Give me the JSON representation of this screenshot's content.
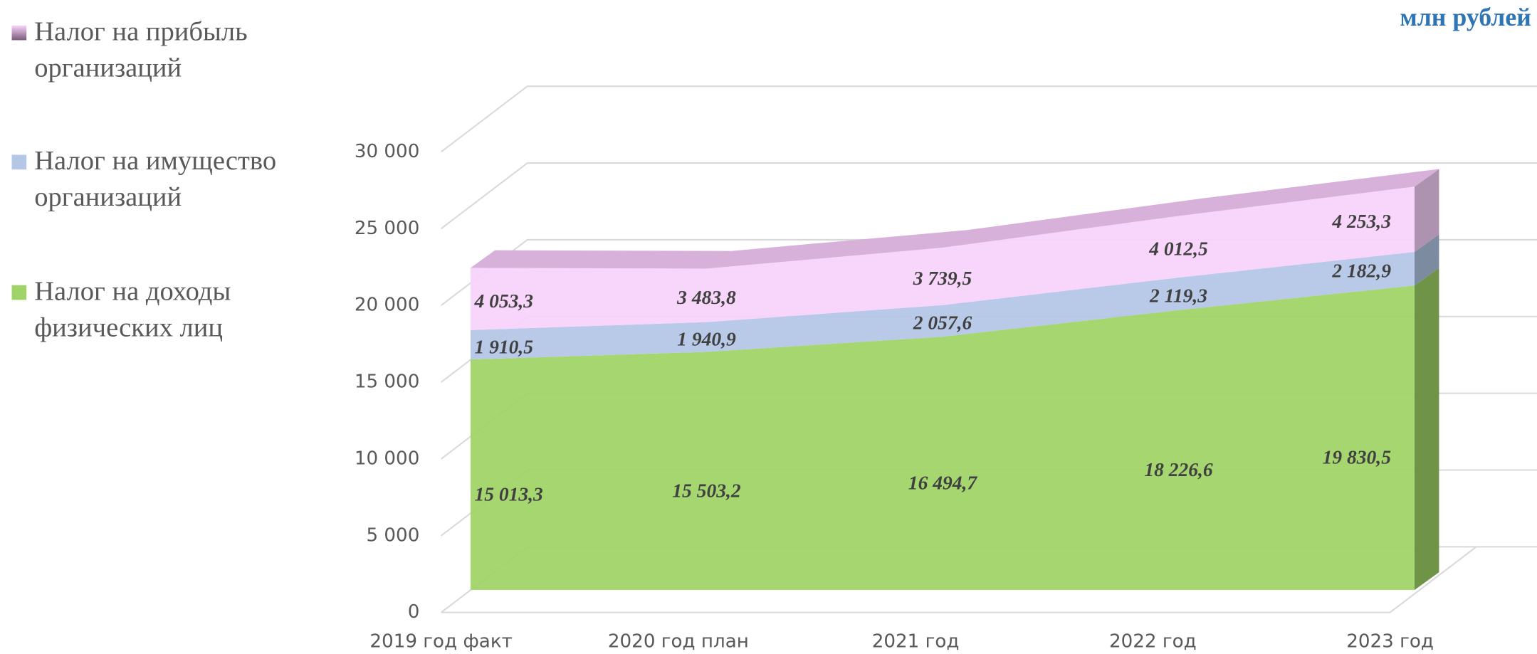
{
  "chart_data": {
    "type": "area",
    "stacked": true,
    "unit_label": "млн рублей",
    "categories": [
      "2019 год факт",
      "2020 год план",
      "2021 год",
      "2022 год",
      "2023 год"
    ],
    "series": [
      {
        "name": "Налог на доходы физических лиц",
        "color": "#a0d468",
        "values": [
          15013.3,
          15503.2,
          16494.7,
          18226.6,
          19830.5
        ],
        "value_labels": [
          "15 013,3",
          "15 503,2",
          "16 494,7",
          "18 226,6",
          "19 830,5"
        ]
      },
      {
        "name": "Налог на имущество организаций",
        "color": "#b4c7e7",
        "values": [
          1910.5,
          1940.9,
          2057.6,
          2119.3,
          2182.9
        ],
        "value_labels": [
          "1 910,5",
          "1 940,9",
          "2 057,6",
          "2 119,3",
          "2 182,9"
        ]
      },
      {
        "name": "Налог на прибыль организаций",
        "color": "#f8d3fb",
        "values": [
          4053.3,
          3483.8,
          3739.5,
          4012.5,
          4253.3
        ],
        "value_labels": [
          "4 053,3",
          "3 483,8",
          "3 739,5",
          "4 012,5",
          "4 253,3"
        ]
      }
    ],
    "ylim": [
      0,
      30000
    ],
    "yticks": [
      0,
      {
        "value": 5000,
        "label": "5 000"
      },
      {
        "value": 10000,
        "label": "10 000"
      },
      {
        "value": 15000,
        "label": "15 000"
      },
      {
        "value": 20000,
        "label": "20 000"
      },
      {
        "value": 25000,
        "label": "25 000"
      },
      {
        "value": 30000,
        "label": "30 000"
      }
    ],
    "grid": true,
    "legend": "left"
  }
}
